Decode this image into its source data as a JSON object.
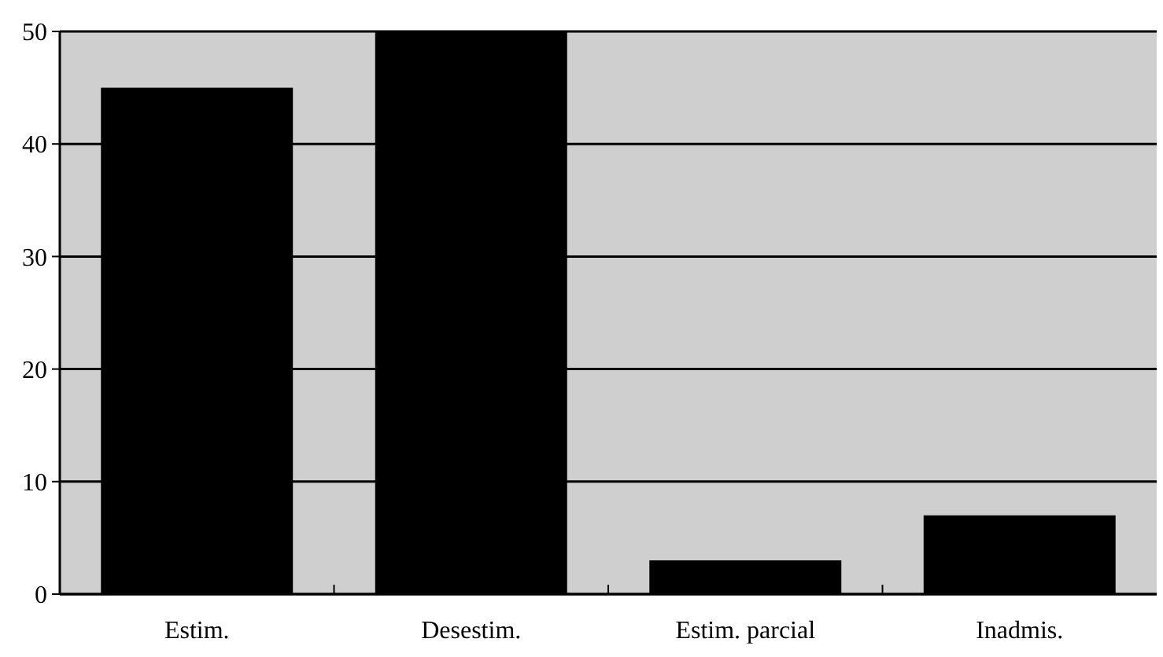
{
  "chart_data": {
    "type": "bar",
    "categories": [
      "Estim.",
      "Desestim.",
      "Estim. parcial",
      "Inadmis."
    ],
    "values": [
      45,
      50,
      3,
      7
    ],
    "color": "#000000",
    "ylim": [
      0,
      50
    ],
    "yticks": [
      0,
      10,
      20,
      30,
      40,
      50
    ],
    "grid": "y"
  }
}
